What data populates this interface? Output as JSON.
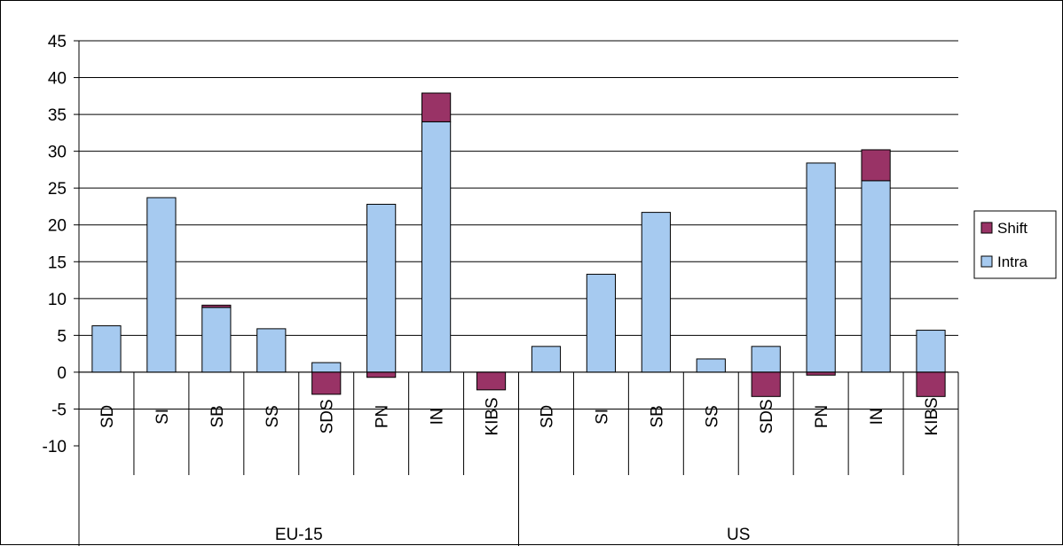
{
  "chart_data": {
    "type": "bar",
    "stacked": true,
    "groups": [
      {
        "name": "EU-15",
        "categories": [
          "SD",
          "SI",
          "SB",
          "SS",
          "SDS",
          "PN",
          "IN",
          "KIBS"
        ]
      },
      {
        "name": "US",
        "categories": [
          "SD",
          "SI",
          "SB",
          "SS",
          "SDS",
          "PN",
          "IN",
          "KIBS"
        ]
      }
    ],
    "categories": [
      "SD",
      "SI",
      "SB",
      "SS",
      "SDS",
      "PN",
      "IN",
      "KIBS",
      "SD",
      "SI",
      "SB",
      "SS",
      "SDS",
      "PN",
      "IN",
      "KIBS"
    ],
    "series": [
      {
        "name": "Intra",
        "color": "#a6caf0",
        "values": [
          6.3,
          23.7,
          8.8,
          5.9,
          1.3,
          22.8,
          34.0,
          0.0,
          3.5,
          13.3,
          21.7,
          1.8,
          3.5,
          28.4,
          26.0,
          5.7
        ]
      },
      {
        "name": "Shift",
        "color": "#993366",
        "values": [
          0.0,
          0.0,
          0.3,
          0.0,
          -3.0,
          -0.7,
          3.9,
          -2.4,
          0.0,
          0.0,
          0.0,
          0.0,
          -3.3,
          -0.4,
          4.2,
          -3.3
        ]
      }
    ],
    "ylim": [
      -10,
      45
    ],
    "yticks": [
      "45",
      "40",
      "35",
      "30",
      "25",
      "20",
      "15",
      "10",
      "5",
      "0",
      "-5",
      "-10"
    ],
    "grid": true,
    "legend": {
      "position": "right",
      "entries": [
        "Shift",
        "Intra"
      ]
    }
  }
}
